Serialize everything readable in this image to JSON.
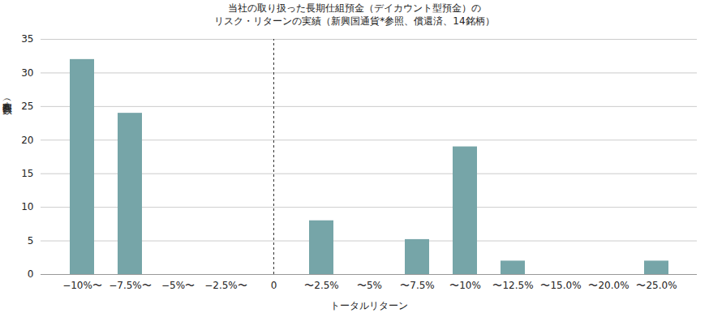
{
  "chart_data": {
    "type": "bar",
    "title": "当社の取り扱った長期仕組預金（デイカウント型預金）の\nリスク・リターンの実績（新興国通貨*参照、償還済、14銘柄）",
    "x_label": "トータルリターン",
    "y_label": "本数（回数）",
    "categories": [
      "−10%〜",
      "−7.5%〜",
      "−5%〜",
      "−2.5%〜",
      "0",
      "〜2.5%",
      "〜5%",
      "〜7.5%",
      "〜10%",
      "〜12.5%",
      "〜15.0%",
      "〜20.0%",
      "〜25.0%"
    ],
    "values": [
      32,
      24,
      0,
      0,
      null,
      8,
      0,
      5.2,
      19,
      2,
      0,
      0,
      2
    ],
    "color": "#76a5a8",
    "ylim": [
      0,
      35
    ],
    "yticks": [
      0,
      5,
      10,
      15,
      20,
      25,
      30,
      35
    ],
    "grid": true
  }
}
